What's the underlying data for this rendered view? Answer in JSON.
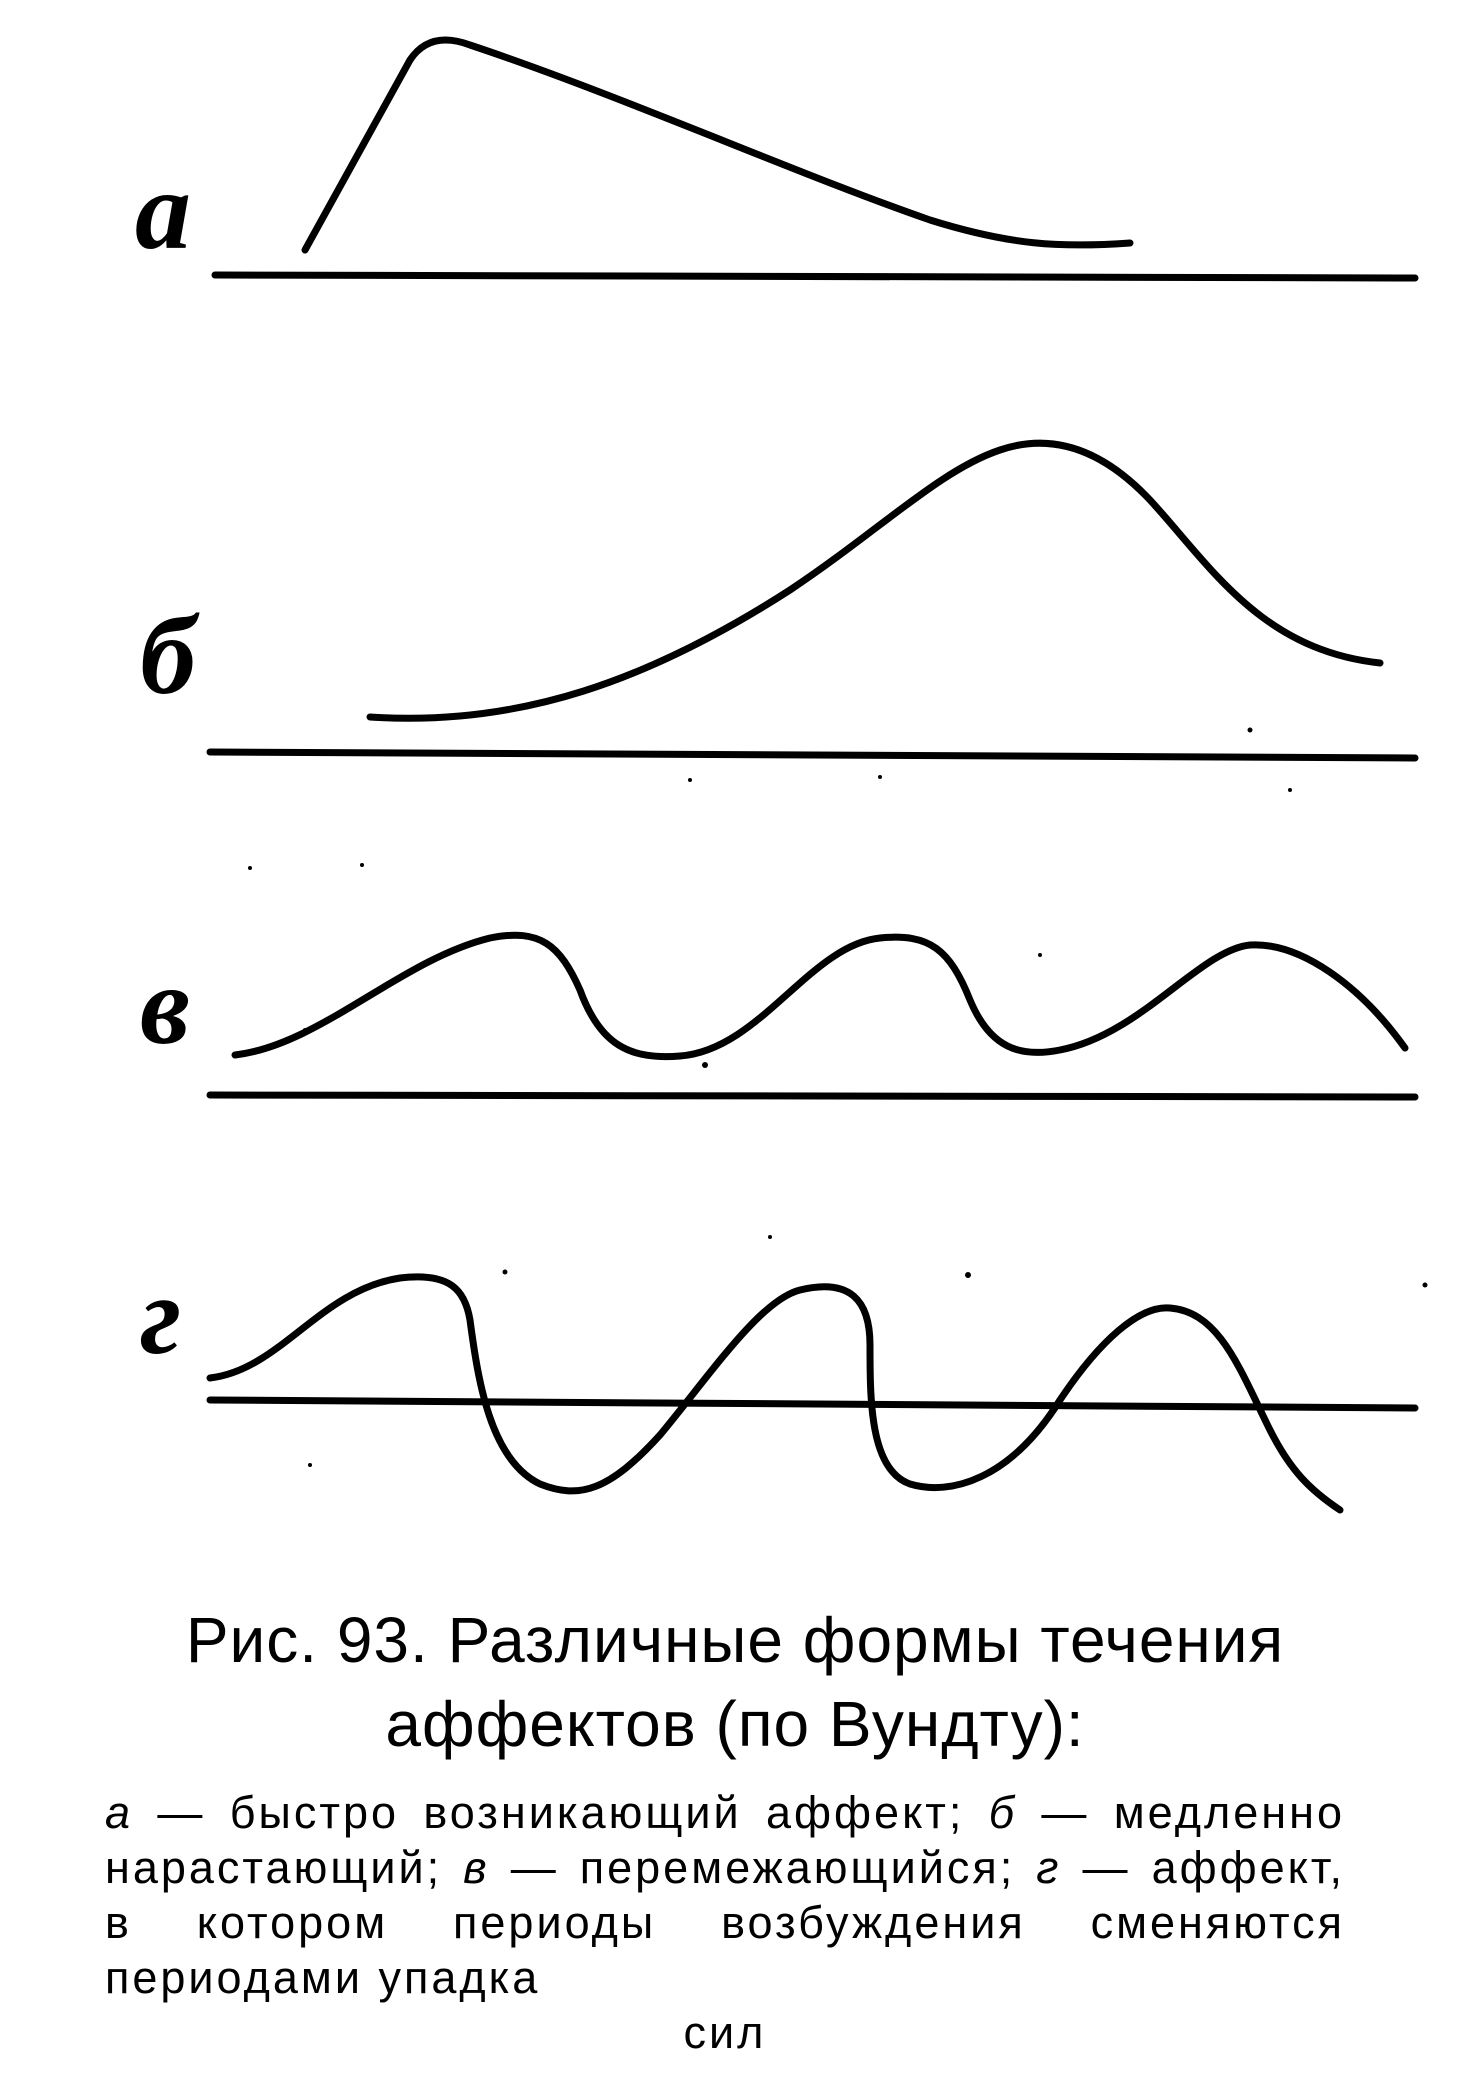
{
  "panels": [
    {
      "label": "а",
      "description_key": "a"
    },
    {
      "label": "б",
      "description_key": "b"
    },
    {
      "label": "в",
      "description_key": "v"
    },
    {
      "label": "г",
      "description_key": "g"
    }
  ],
  "caption": {
    "title_line1": "Рис. 93. Различные формы течения",
    "title_line2": "аффектов (по Вундту):",
    "legend": [
      {
        "key": "а",
        "text": " — быстро возникающий аффект; "
      },
      {
        "key": "б",
        "text": " — медленно нарастающий; "
      },
      {
        "key": "в",
        "text": " — перемежающийся; "
      },
      {
        "key": "г",
        "text": " — аффект, в котором периоды возбуждения сменяются периодами упадка"
      }
    ],
    "legend_tail": "сил"
  },
  "colors": {
    "ink": "#000000",
    "paper": "#ffffff"
  }
}
